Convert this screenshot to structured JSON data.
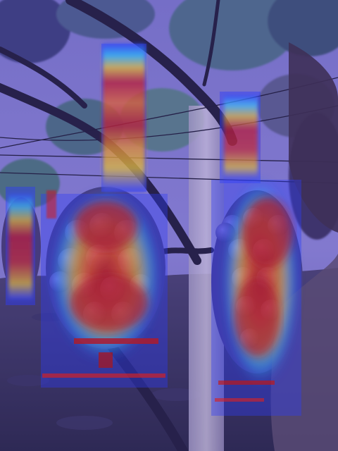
{
  "image": {
    "kind": "photo-with-heatmap-overlay",
    "subject": "grape-vine-with-bunches",
    "palette": {
      "sky": "#7f78c4",
      "sky_light": "#9d95da",
      "ground": "#3a3158",
      "ground_dark": "#2b2545",
      "foliage": "#5f7c8a",
      "foliage_dark": "#3c5a72",
      "trunk": "#2a2340",
      "post": "#b7a8c6",
      "grapes": "#4b3f7a",
      "heat_low": "#2a3cff",
      "heat_mid": "#ffd400",
      "heat_high": "#c81414"
    }
  }
}
